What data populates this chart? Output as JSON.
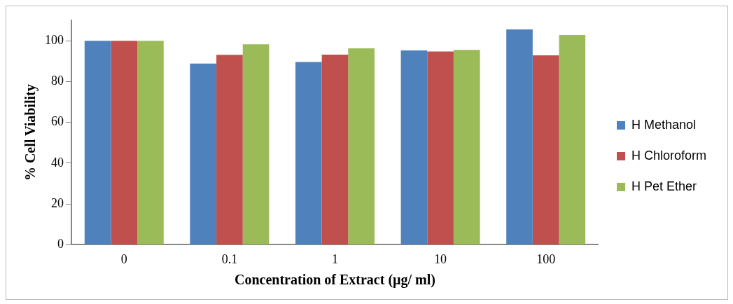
{
  "chart_data": {
    "type": "bar",
    "xlabel": "Concentration of Extract (µg/ ml)",
    "ylabel": "% Cell Viability",
    "categories": [
      "0",
      "0.1",
      "1",
      "10",
      "100"
    ],
    "series": [
      {
        "name": "H Methanol",
        "color": "#4f81bd",
        "values": [
          100,
          88.8,
          89.6,
          95.2,
          105.5
        ]
      },
      {
        "name": "H Chloroform",
        "color": "#c0504d",
        "values": [
          100,
          93.1,
          93.2,
          94.7,
          92.8
        ]
      },
      {
        "name": "H Pet Ether",
        "color": "#9bbb59",
        "values": [
          100,
          98.2,
          96.3,
          95.5,
          102.8
        ]
      }
    ],
    "ylim": [
      0,
      110
    ],
    "yticks": [
      0,
      20,
      40,
      60,
      80,
      100
    ],
    "grid": false,
    "legend": "right"
  }
}
